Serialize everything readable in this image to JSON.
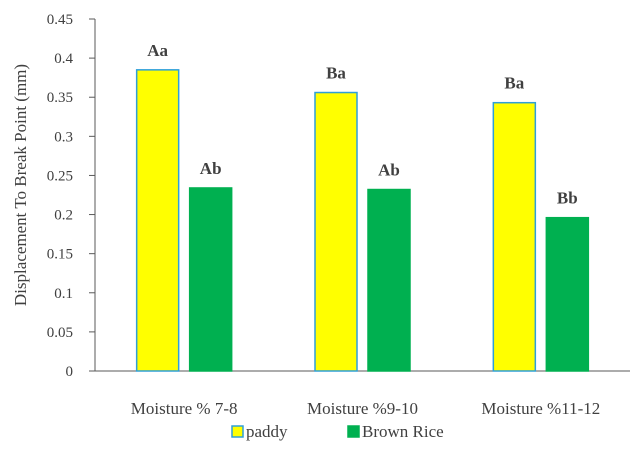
{
  "chart_data": {
    "type": "bar",
    "title": "",
    "xlabel": "",
    "ylabel": "Displacement To Break Point (mm)",
    "categories": [
      "Moisture % 7-8",
      "Moisture  %9-10",
      "Moisture %11-12"
    ],
    "ylim": [
      0,
      0.45
    ],
    "yticks": [
      "0",
      "0.05",
      "0.1",
      "0.15",
      "0.2",
      "0.25",
      "0.3",
      "0.35",
      "0.4",
      "0.45"
    ],
    "grid": false,
    "legend_position": "bottom",
    "series": [
      {
        "name": "paddy",
        "values": [
          0.385,
          0.356,
          0.343
        ],
        "labels": [
          "Aa",
          "Ba",
          "Ba"
        ],
        "fill": "#ffff00",
        "stroke": "#2e9fd8"
      },
      {
        "name": "Brown Rice",
        "values": [
          0.234,
          0.232,
          0.196
        ],
        "labels": [
          "Ab",
          "Ab",
          "Bb"
        ],
        "fill": "#00b050",
        "stroke": "#00b050"
      }
    ]
  }
}
